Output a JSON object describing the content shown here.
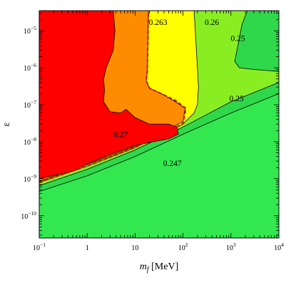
{
  "chart_data": {
    "type": "contour",
    "title": "",
    "xlabel": {
      "symbol": "m",
      "subscript": "f",
      "unit": "[MeV]"
    },
    "ylabel": "ε",
    "x_scale": "log",
    "y_scale": "log",
    "xlim": [
      0.1,
      10000
    ],
    "ylim": [
      2.5e-11,
      3.5e-05
    ],
    "x_ticks": [
      {
        "value": 0.1,
        "base": "10",
        "exp": "−1"
      },
      {
        "value": 1,
        "text": "1"
      },
      {
        "value": 10,
        "text": "10"
      },
      {
        "value": 100,
        "base": "10",
        "exp": "2"
      },
      {
        "value": 1000,
        "base": "10",
        "exp": "3"
      },
      {
        "value": 10000,
        "base": "10",
        "exp": "4"
      }
    ],
    "y_ticks": [
      {
        "value": 1e-10,
        "base": "10",
        "exp": "−10"
      },
      {
        "value": 1e-09,
        "base": "10",
        "exp": "−9"
      },
      {
        "value": 1e-08,
        "base": "10",
        "exp": "−8"
      },
      {
        "value": 1e-07,
        "base": "10",
        "exp": "−7"
      },
      {
        "value": 1e-06,
        "base": "10",
        "exp": "−6"
      },
      {
        "value": 1e-05,
        "base": "10",
        "exp": "−5"
      }
    ],
    "regions": [
      {
        "name": "region-bright-green",
        "color": "#33e84f",
        "points": [
          [
            0.1,
            2.5e-11
          ],
          [
            10000,
            2.5e-11
          ],
          [
            10000,
            3.5e-05
          ],
          [
            0.1,
            3.5e-05
          ]
        ]
      },
      {
        "name": "region-mid-green",
        "color": "#2fd84a",
        "points": [
          [
            0.1,
            4.5e-10
          ],
          [
            1,
            1.2e-09
          ],
          [
            10,
            4e-09
          ],
          [
            100,
            1.6e-08
          ],
          [
            1000,
            6e-08
          ],
          [
            10000,
            2e-07
          ],
          [
            10000,
            3.5e-05
          ],
          [
            0.1,
            3.5e-05
          ]
        ]
      },
      {
        "name": "region-light-green",
        "color": "#88ee22",
        "points": [
          [
            0.1,
            6.5e-10
          ],
          [
            1,
            1.8e-09
          ],
          [
            10,
            6e-09
          ],
          [
            100,
            2.5e-08
          ],
          [
            1000,
            1.2e-07
          ],
          [
            10000,
            4e-07
          ],
          [
            10000,
            3.5e-05
          ],
          [
            0.1,
            3.5e-05
          ]
        ]
      },
      {
        "name": "region-yellow",
        "color": "#ffff00",
        "points": [
          [
            0.1,
            8e-10
          ],
          [
            1,
            2.2e-09
          ],
          [
            10,
            7e-09
          ],
          [
            100,
            3e-08
          ],
          [
            170,
            6e-08
          ],
          [
            200,
            1e-07
          ],
          [
            210,
            3e-07
          ],
          [
            200,
            1e-06
          ],
          [
            180,
            1e-05
          ],
          [
            170,
            3.5e-05
          ],
          [
            0.1,
            3.5e-05
          ]
        ]
      },
      {
        "name": "region-orange",
        "color": "#ff8c00",
        "points": [
          [
            0.1,
            8.5e-10
          ],
          [
            1,
            2.4e-09
          ],
          [
            10,
            7.5e-09
          ],
          [
            100,
            3.5e-08
          ],
          [
            110,
            8e-08
          ],
          [
            70,
            1.2e-07
          ],
          [
            35,
            2e-07
          ],
          [
            20,
            2.8e-07
          ],
          [
            17,
            4.5e-07
          ],
          [
            18,
            8e-07
          ],
          [
            19,
            3.5e-05
          ],
          [
            0.1,
            3.5e-05
          ]
        ]
      },
      {
        "name": "region-red",
        "color": "#ff0000",
        "points": [
          [
            0.1,
            1e-09
          ],
          [
            0.5,
            1.6e-09
          ],
          [
            1,
            2.5e-09
          ],
          [
            3,
            4.5e-09
          ],
          [
            10,
            8e-09
          ],
          [
            50,
            1.2e-08
          ],
          [
            80,
            1.6e-08
          ],
          [
            75,
            2.5e-08
          ],
          [
            50,
            3e-08
          ],
          [
            20,
            3e-08
          ],
          [
            10,
            4.5e-08
          ],
          [
            6.5,
            7.5e-08
          ],
          [
            5,
            6e-08
          ],
          [
            3,
            6.5e-08
          ],
          [
            2.2,
            1.2e-07
          ],
          [
            2.3,
            2.5e-07
          ],
          [
            2.2,
            5e-07
          ],
          [
            2.5,
            1e-06
          ],
          [
            3.5,
            3e-06
          ],
          [
            3.8,
            1e-05
          ],
          [
            3.5,
            3.5e-05
          ],
          [
            0.1,
            3.5e-05
          ]
        ]
      },
      {
        "name": "region-upper-right-green",
        "color": "#2fd84a",
        "points": [
          [
            10000,
            3.5e-05
          ],
          [
            2200,
            3.5e-05
          ],
          [
            1700,
            1.5e-05
          ],
          [
            1400,
            4e-06
          ],
          [
            1200,
            1.5e-06
          ],
          [
            1500,
            1e-06
          ],
          [
            3000,
            9e-07
          ],
          [
            10000,
            8e-07
          ]
        ]
      }
    ],
    "dashed_contour": {
      "color": "#cc1111",
      "points": [
        [
          0.1,
          8e-10
        ],
        [
          1,
          2.2e-09
        ],
        [
          10,
          7e-09
        ],
        [
          100,
          3.1e-08
        ],
        [
          115,
          8e-08
        ],
        [
          70,
          1.3e-07
        ],
        [
          35,
          2e-07
        ],
        [
          20,
          2.8e-07
        ],
        [
          17,
          4.5e-07
        ],
        [
          18,
          8e-07
        ],
        [
          19,
          3.5e-05
        ]
      ]
    },
    "contour_labels": [
      {
        "text": "0.263",
        "x": 30,
        "y": 1.6e-05
      },
      {
        "text": "0.26",
        "x": 400,
        "y": 1.6e-05
      },
      {
        "text": "0.25",
        "x": 1400,
        "y": 6e-06
      },
      {
        "text": "0.25",
        "x": 1300,
        "y": 1.4e-07
      },
      {
        "text": "0.27",
        "x": 5,
        "y": 1.5e-08
      },
      {
        "text": "0.247",
        "x": 60,
        "y": 2.5e-09
      }
    ]
  }
}
